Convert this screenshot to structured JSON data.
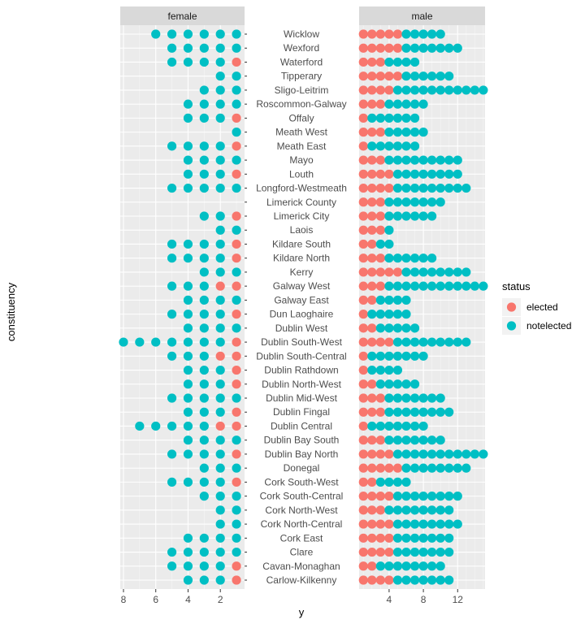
{
  "chart_data": {
    "type": "scatter",
    "xlabel": "y",
    "ylabel": "constituency",
    "facets": [
      "female",
      "male"
    ],
    "facet_xlim": {
      "female": [
        8.2,
        0.5
      ],
      "male": [
        0.5,
        15.2
      ]
    },
    "facet_xticks": {
      "female": [
        8,
        6,
        4,
        2
      ],
      "male": [
        4,
        8,
        12
      ]
    },
    "legend": {
      "title": "status",
      "position": "right",
      "entries": [
        {
          "name": "elected",
          "color": "#F8766D"
        },
        {
          "name": "notelected",
          "color": "#00BFC4"
        }
      ]
    },
    "grid": true,
    "categories": [
      "Wicklow",
      "Wexford",
      "Waterford",
      "Tipperary",
      "Sligo-Leitrim",
      "Roscommon-Galway",
      "Offaly",
      "Meath West",
      "Meath East",
      "Mayo",
      "Louth",
      "Longford-Westmeath",
      "Limerick County",
      "Limerick City",
      "Laois",
      "Kildare South",
      "Kildare North",
      "Kerry",
      "Galway West",
      "Galway East",
      "Dun Laoghaire",
      "Dublin West",
      "Dublin South-West",
      "Dublin South-Central",
      "Dublin Rathdown",
      "Dublin North-West",
      "Dublin Mid-West",
      "Dublin Fingal",
      "Dublin Central",
      "Dublin Bay South",
      "Dublin Bay North",
      "Donegal",
      "Cork South-West",
      "Cork South-Central",
      "Cork North-West",
      "Cork North-Central",
      "Cork East",
      "Clare",
      "Cavan-Monaghan",
      "Carlow-Kilkenny"
    ],
    "female_elected": [
      0,
      0,
      1,
      0,
      0,
      0,
      1,
      0,
      1,
      0,
      1,
      0,
      0,
      1,
      0,
      1,
      1,
      0,
      2,
      0,
      1,
      0,
      1,
      2,
      1,
      1,
      0,
      1,
      2,
      0,
      1,
      0,
      1,
      0,
      0,
      0,
      0,
      0,
      1,
      1
    ],
    "female_notelected": [
      6,
      5,
      4,
      2,
      3,
      4,
      3,
      1,
      4,
      4,
      3,
      5,
      0,
      2,
      2,
      4,
      4,
      3,
      3,
      4,
      4,
      4,
      7,
      3,
      3,
      3,
      5,
      3,
      5,
      4,
      4,
      3,
      4,
      3,
      2,
      2,
      4,
      5,
      4,
      3
    ],
    "male_elected": [
      5,
      5,
      3,
      5,
      4,
      3,
      1,
      3,
      1,
      3,
      4,
      4,
      3,
      3,
      3,
      2,
      3,
      5,
      3,
      2,
      1,
      2,
      4,
      1,
      1,
      2,
      3,
      3,
      1,
      3,
      4,
      5,
      2,
      4,
      3,
      4,
      4,
      4,
      2,
      4
    ],
    "male_notelected": [
      5,
      7,
      4,
      6,
      11,
      5,
      6,
      5,
      6,
      9,
      8,
      9,
      7,
      6,
      1,
      2,
      6,
      8,
      12,
      4,
      5,
      5,
      9,
      7,
      4,
      5,
      7,
      8,
      7,
      7,
      11,
      8,
      4,
      8,
      8,
      8,
      7,
      7,
      8,
      7
    ]
  }
}
